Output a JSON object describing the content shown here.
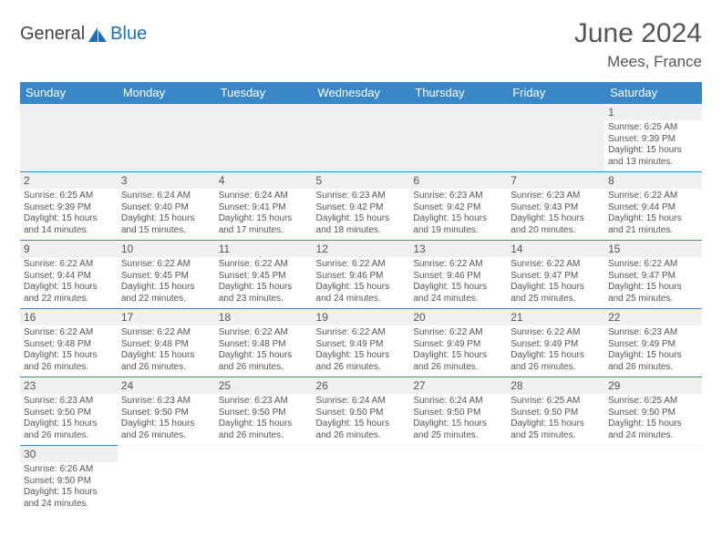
{
  "logo": {
    "part1": "General",
    "part2": "Blue"
  },
  "title": "June 2024",
  "location": "Mees, France",
  "colors": {
    "header_bg": "#3a87c8",
    "header_text": "#ffffff",
    "daynum_bg": "#f0f0f0",
    "border": "#3a87c8",
    "text": "#555555",
    "logo_blue": "#1f6fb8"
  },
  "columns": [
    "Sunday",
    "Monday",
    "Tuesday",
    "Wednesday",
    "Thursday",
    "Friday",
    "Saturday"
  ],
  "weeks": [
    [
      null,
      null,
      null,
      null,
      null,
      null,
      {
        "n": "1",
        "sr": "6:25 AM",
        "ss": "9:39 PM",
        "dl": "15 hours and 13 minutes."
      }
    ],
    [
      {
        "n": "2",
        "sr": "6:25 AM",
        "ss": "9:39 PM",
        "dl": "15 hours and 14 minutes."
      },
      {
        "n": "3",
        "sr": "6:24 AM",
        "ss": "9:40 PM",
        "dl": "15 hours and 15 minutes."
      },
      {
        "n": "4",
        "sr": "6:24 AM",
        "ss": "9:41 PM",
        "dl": "15 hours and 17 minutes."
      },
      {
        "n": "5",
        "sr": "6:23 AM",
        "ss": "9:42 PM",
        "dl": "15 hours and 18 minutes."
      },
      {
        "n": "6",
        "sr": "6:23 AM",
        "ss": "9:42 PM",
        "dl": "15 hours and 19 minutes."
      },
      {
        "n": "7",
        "sr": "6:23 AM",
        "ss": "9:43 PM",
        "dl": "15 hours and 20 minutes."
      },
      {
        "n": "8",
        "sr": "6:22 AM",
        "ss": "9:44 PM",
        "dl": "15 hours and 21 minutes."
      }
    ],
    [
      {
        "n": "9",
        "sr": "6:22 AM",
        "ss": "9:44 PM",
        "dl": "15 hours and 22 minutes."
      },
      {
        "n": "10",
        "sr": "6:22 AM",
        "ss": "9:45 PM",
        "dl": "15 hours and 22 minutes."
      },
      {
        "n": "11",
        "sr": "6:22 AM",
        "ss": "9:45 PM",
        "dl": "15 hours and 23 minutes."
      },
      {
        "n": "12",
        "sr": "6:22 AM",
        "ss": "9:46 PM",
        "dl": "15 hours and 24 minutes."
      },
      {
        "n": "13",
        "sr": "6:22 AM",
        "ss": "9:46 PM",
        "dl": "15 hours and 24 minutes."
      },
      {
        "n": "14",
        "sr": "6:22 AM",
        "ss": "9:47 PM",
        "dl": "15 hours and 25 minutes."
      },
      {
        "n": "15",
        "sr": "6:22 AM",
        "ss": "9:47 PM",
        "dl": "15 hours and 25 minutes."
      }
    ],
    [
      {
        "n": "16",
        "sr": "6:22 AM",
        "ss": "9:48 PM",
        "dl": "15 hours and 26 minutes."
      },
      {
        "n": "17",
        "sr": "6:22 AM",
        "ss": "9:48 PM",
        "dl": "15 hours and 26 minutes."
      },
      {
        "n": "18",
        "sr": "6:22 AM",
        "ss": "9:48 PM",
        "dl": "15 hours and 26 minutes."
      },
      {
        "n": "19",
        "sr": "6:22 AM",
        "ss": "9:49 PM",
        "dl": "15 hours and 26 minutes."
      },
      {
        "n": "20",
        "sr": "6:22 AM",
        "ss": "9:49 PM",
        "dl": "15 hours and 26 minutes."
      },
      {
        "n": "21",
        "sr": "6:22 AM",
        "ss": "9:49 PM",
        "dl": "15 hours and 26 minutes."
      },
      {
        "n": "22",
        "sr": "6:23 AM",
        "ss": "9:49 PM",
        "dl": "15 hours and 26 minutes."
      }
    ],
    [
      {
        "n": "23",
        "sr": "6:23 AM",
        "ss": "9:50 PM",
        "dl": "15 hours and 26 minutes."
      },
      {
        "n": "24",
        "sr": "6:23 AM",
        "ss": "9:50 PM",
        "dl": "15 hours and 26 minutes."
      },
      {
        "n": "25",
        "sr": "6:23 AM",
        "ss": "9:50 PM",
        "dl": "15 hours and 26 minutes."
      },
      {
        "n": "26",
        "sr": "6:24 AM",
        "ss": "9:50 PM",
        "dl": "15 hours and 26 minutes."
      },
      {
        "n": "27",
        "sr": "6:24 AM",
        "ss": "9:50 PM",
        "dl": "15 hours and 25 minutes."
      },
      {
        "n": "28",
        "sr": "6:25 AM",
        "ss": "9:50 PM",
        "dl": "15 hours and 25 minutes."
      },
      {
        "n": "29",
        "sr": "6:25 AM",
        "ss": "9:50 PM",
        "dl": "15 hours and 24 minutes."
      }
    ],
    [
      {
        "n": "30",
        "sr": "6:26 AM",
        "ss": "9:50 PM",
        "dl": "15 hours and 24 minutes."
      },
      null,
      null,
      null,
      null,
      null,
      null
    ]
  ],
  "labels": {
    "sunrise": "Sunrise:",
    "sunset": "Sunset:",
    "daylight": "Daylight:"
  }
}
